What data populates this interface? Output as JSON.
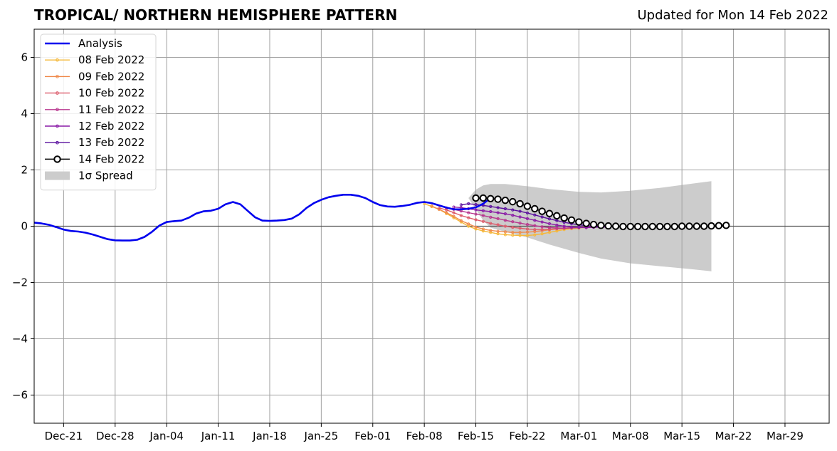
{
  "header": {
    "title": "TROPICAL/ NORTHERN HEMISPHERE PATTERN",
    "subtitle": "Updated for Mon 14 Feb 2022"
  },
  "chart_data": {
    "type": "line",
    "title": "TROPICAL/ NORTHERN HEMISPHERE PATTERN",
    "subtitle": "Updated for Mon 14 Feb 2022",
    "xlabel": "",
    "ylabel": "",
    "xlim": [
      "2021-12-17",
      "2022-04-04"
    ],
    "ylim": [
      -7,
      7
    ],
    "grid": true,
    "legend_position": "top-left",
    "x_ticks": [
      "Dec-21",
      "Dec-28",
      "Jan-04",
      "Jan-11",
      "Jan-18",
      "Jan-25",
      "Feb-01",
      "Feb-08",
      "Feb-15",
      "Feb-22",
      "Mar-01",
      "Mar-08",
      "Mar-15",
      "Mar-22",
      "Mar-29"
    ],
    "y_ticks": [
      -6,
      -4,
      -2,
      0,
      2,
      4,
      6
    ],
    "y_tick_labels": [
      "−6",
      "−4",
      "−2",
      "0",
      "2",
      "4",
      "6"
    ],
    "analysis": {
      "name": "Analysis",
      "color": "#0000ee",
      "start": "2021-12-17",
      "values": [
        0.13,
        0.1,
        0.05,
        -0.03,
        -0.12,
        -0.17,
        -0.19,
        -0.23,
        -0.3,
        -0.38,
        -0.46,
        -0.5,
        -0.51,
        -0.51,
        -0.48,
        -0.38,
        -0.2,
        0.02,
        0.15,
        0.18,
        0.2,
        0.3,
        0.45,
        0.53,
        0.55,
        0.62,
        0.78,
        0.86,
        0.78,
        0.55,
        0.32,
        0.2,
        0.19,
        0.2,
        0.22,
        0.27,
        0.42,
        0.65,
        0.82,
        0.94,
        1.03,
        1.08,
        1.12,
        1.12,
        1.08,
        1.0,
        0.86,
        0.75,
        0.7,
        0.69,
        0.72,
        0.76,
        0.83,
        0.86,
        0.82,
        0.74,
        0.66,
        0.6,
        0.6,
        0.62,
        0.67,
        0.8,
        1.0
      ]
    },
    "forecasts": [
      {
        "name": "08 Feb 2022",
        "color": "#f5b83a",
        "start": "2022-02-08",
        "values": [
          0.8,
          0.7,
          0.6,
          0.45,
          0.3,
          0.15,
          0.0,
          -0.1,
          -0.17,
          -0.22,
          -0.27,
          -0.3,
          -0.32,
          -0.33,
          -0.33,
          -0.31,
          -0.27,
          -0.22,
          -0.17,
          -0.12,
          -0.09,
          -0.07
        ]
      },
      {
        "name": "09 Feb 2022",
        "color": "#f08a4b",
        "start": "2022-02-09",
        "values": [
          0.72,
          0.6,
          0.48,
          0.35,
          0.2,
          0.08,
          -0.03,
          -0.1,
          -0.15,
          -0.18,
          -0.2,
          -0.22,
          -0.22,
          -0.21,
          -0.19,
          -0.16,
          -0.13,
          -0.1,
          -0.08,
          -0.06,
          -0.05,
          -0.05
        ]
      },
      {
        "name": "10 Feb 2022",
        "color": "#dc5b6b",
        "start": "2022-02-10",
        "values": [
          0.65,
          0.58,
          0.48,
          0.38,
          0.3,
          0.23,
          0.17,
          0.1,
          0.05,
          0.0,
          -0.04,
          -0.07,
          -0.1,
          -0.12,
          -0.12,
          -0.11,
          -0.09,
          -0.07,
          -0.05,
          -0.04,
          -0.03,
          -0.03
        ]
      },
      {
        "name": "11 Feb 2022",
        "color": "#b8368e",
        "start": "2022-02-11",
        "values": [
          0.65,
          0.6,
          0.54,
          0.48,
          0.43,
          0.38,
          0.32,
          0.27,
          0.21,
          0.16,
          0.11,
          0.06,
          0.02,
          -0.02,
          -0.05,
          -0.06,
          -0.07,
          -0.06,
          -0.05,
          -0.04,
          -0.03,
          -0.03
        ]
      },
      {
        "name": "12 Feb 2022",
        "color": "#8a1aa6",
        "start": "2022-02-12",
        "values": [
          0.68,
          0.66,
          0.62,
          0.58,
          0.55,
          0.52,
          0.48,
          0.44,
          0.39,
          0.33,
          0.27,
          0.21,
          0.15,
          0.09,
          0.04,
          0.0,
          -0.03,
          -0.04,
          -0.05,
          -0.04,
          -0.03,
          -0.03
        ]
      },
      {
        "name": "13 Feb 2022",
        "color": "#5a0f9e",
        "start": "2022-02-13",
        "values": [
          0.76,
          0.8,
          0.77,
          0.74,
          0.7,
          0.66,
          0.62,
          0.58,
          0.53,
          0.47,
          0.4,
          0.33,
          0.26,
          0.2,
          0.14,
          0.09,
          0.05,
          0.02,
          0.0,
          -0.01,
          -0.02,
          -0.02
        ]
      },
      {
        "name": "14 Feb 2022",
        "color": "#000000",
        "start": "2022-02-15",
        "markers": "open-circle",
        "values": [
          1.0,
          1.0,
          0.98,
          0.96,
          0.92,
          0.87,
          0.8,
          0.71,
          0.62,
          0.53,
          0.45,
          0.37,
          0.29,
          0.22,
          0.15,
          0.1,
          0.06,
          0.03,
          0.01,
          0.0,
          -0.01,
          -0.01,
          -0.01,
          -0.01,
          -0.01,
          -0.01,
          -0.01,
          -0.01,
          0.0,
          0.0,
          0.0,
          0.0,
          0.01,
          0.02,
          0.03
        ]
      }
    ],
    "spread": {
      "name": "1σ Spread",
      "color": "#cccccc",
      "x": [
        "2022-02-14",
        "2022-02-15",
        "2022-02-16",
        "2022-02-17",
        "2022-02-19",
        "2022-02-22",
        "2022-02-25",
        "2022-03-01",
        "2022-03-04",
        "2022-03-08",
        "2022-03-12",
        "2022-03-16",
        "2022-03-19"
      ],
      "upper": [
        1.0,
        1.3,
        1.45,
        1.5,
        1.5,
        1.42,
        1.32,
        1.22,
        1.2,
        1.26,
        1.36,
        1.5,
        1.6
      ],
      "lower": [
        1.0,
        0.6,
        0.2,
        -0.05,
        -0.2,
        -0.4,
        -0.65,
        -0.95,
        -1.15,
        -1.32,
        -1.42,
        -1.52,
        -1.6
      ]
    }
  },
  "legend": [
    {
      "label": "Analysis",
      "color": "#0000ee",
      "kind": "thick-line"
    },
    {
      "label": "08 Feb 2022",
      "color": "#f5b83a",
      "kind": "dot-line"
    },
    {
      "label": "09 Feb 2022",
      "color": "#f08a4b",
      "kind": "dot-line"
    },
    {
      "label": "10 Feb 2022",
      "color": "#dc5b6b",
      "kind": "dot-line"
    },
    {
      "label": "11 Feb 2022",
      "color": "#b8368e",
      "kind": "dot-line"
    },
    {
      "label": "12 Feb 2022",
      "color": "#8a1aa6",
      "kind": "dot-line"
    },
    {
      "label": "13 Feb 2022",
      "color": "#5a0f9e",
      "kind": "dot-line"
    },
    {
      "label": "14 Feb 2022",
      "color": "#000000",
      "kind": "circle-line"
    },
    {
      "label": "1σ Spread",
      "color": "#cccccc",
      "kind": "patch"
    }
  ]
}
